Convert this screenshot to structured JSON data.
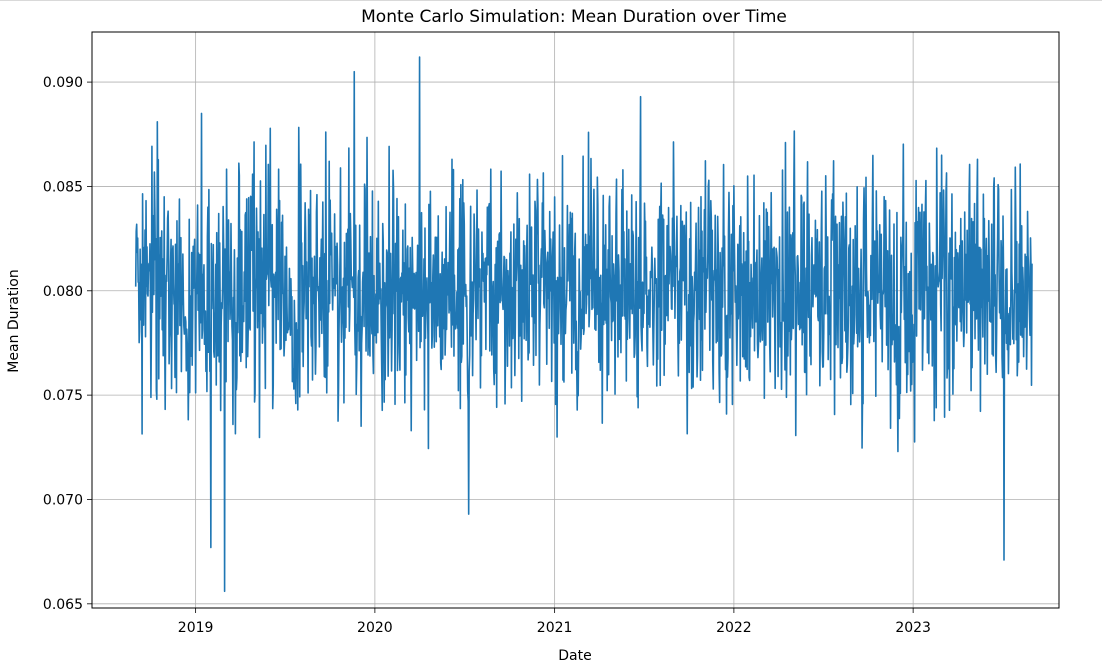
{
  "chart_data": {
    "type": "line",
    "title": "Monte Carlo Simulation: Mean Duration over Time",
    "xlabel": "Date",
    "ylabel": "Mean Duration",
    "x_axis_type": "date",
    "xlim": [
      "2018-06-04",
      "2023-10-25"
    ],
    "ylim": [
      0.0648,
      0.0924
    ],
    "x_ticks": [
      "2019",
      "2020",
      "2021",
      "2022",
      "2023"
    ],
    "x_tick_dates": [
      "2019-01-01",
      "2020-01-01",
      "2021-01-01",
      "2022-01-01",
      "2023-01-01"
    ],
    "y_ticks": [
      "0.065",
      "0.070",
      "0.075",
      "0.080",
      "0.085",
      "0.090"
    ],
    "y_tick_values": [
      0.065,
      0.07,
      0.075,
      0.08,
      0.085,
      0.09
    ],
    "grid": true,
    "line_color": "#1f77b4",
    "series": [
      {
        "x_start": "2018-09-01",
        "x_end": "2023-08-31",
        "frequency": "daily",
        "summary_mean": 0.08,
        "notable_points": [
          {
            "x": "2018-09-01",
            "y": 0.0802
          },
          {
            "x": "2018-10-15",
            "y": 0.0881
          },
          {
            "x": "2019-02-01",
            "y": 0.0677
          },
          {
            "x": "2019-03-01",
            "y": 0.0656
          },
          {
            "x": "2019-11-20",
            "y": 0.0905
          },
          {
            "x": "2020-04-01",
            "y": 0.0912
          },
          {
            "x": "2020-07-10",
            "y": 0.0693
          },
          {
            "x": "2021-06-25",
            "y": 0.0893
          },
          {
            "x": "2023-07-05",
            "y": 0.0671
          },
          {
            "x": "2023-08-31",
            "y": 0.0813
          }
        ]
      }
    ]
  }
}
